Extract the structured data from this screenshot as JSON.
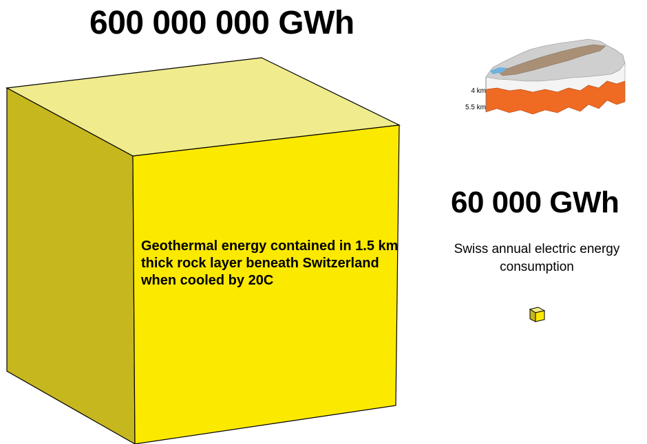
{
  "large": {
    "value_label": "600 000 000 GWh",
    "description": "Geothermal energy contained in 1.5 km thick rock layer beneath Switzerland when cooled by 20C",
    "colors": {
      "front": "#fbe900",
      "top": "#f0eb8c",
      "side": "#c7b71f"
    }
  },
  "small": {
    "value_label": "60 000 GWh",
    "description": "Swiss annual electric energy consumption"
  },
  "map": {
    "depth_top_label": "4 km",
    "depth_bottom_label": "5.5 km",
    "layer_color": "#ef6a23"
  }
}
